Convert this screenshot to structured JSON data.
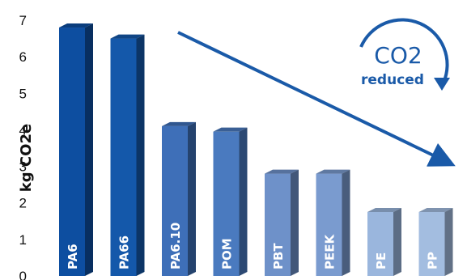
{
  "chart_data": {
    "type": "bar",
    "categories": [
      "PA6",
      "PA66",
      "PA6.10",
      "POM",
      "PBT",
      "PEEK",
      "PE",
      "PP"
    ],
    "values": [
      6.8,
      6.5,
      4.1,
      3.95,
      2.8,
      2.8,
      1.75,
      1.75
    ],
    "ylabel": "kg CO2e",
    "ylim": [
      0,
      7
    ],
    "yticks": [
      "0",
      "1",
      "2",
      "3",
      "4",
      "5",
      "6",
      "7"
    ],
    "grid": false,
    "bar_colors": [
      "#0d4ea0",
      "#1458aa",
      "#3e6fb8",
      "#4a7abf",
      "#6e91c9",
      "#7a9bcf",
      "#9ab6dd",
      "#a3bde0"
    ],
    "trend": "downward arrow"
  },
  "badge": {
    "co2": "CO2",
    "reduced": "reduced",
    "color": "#1a5aa8"
  }
}
